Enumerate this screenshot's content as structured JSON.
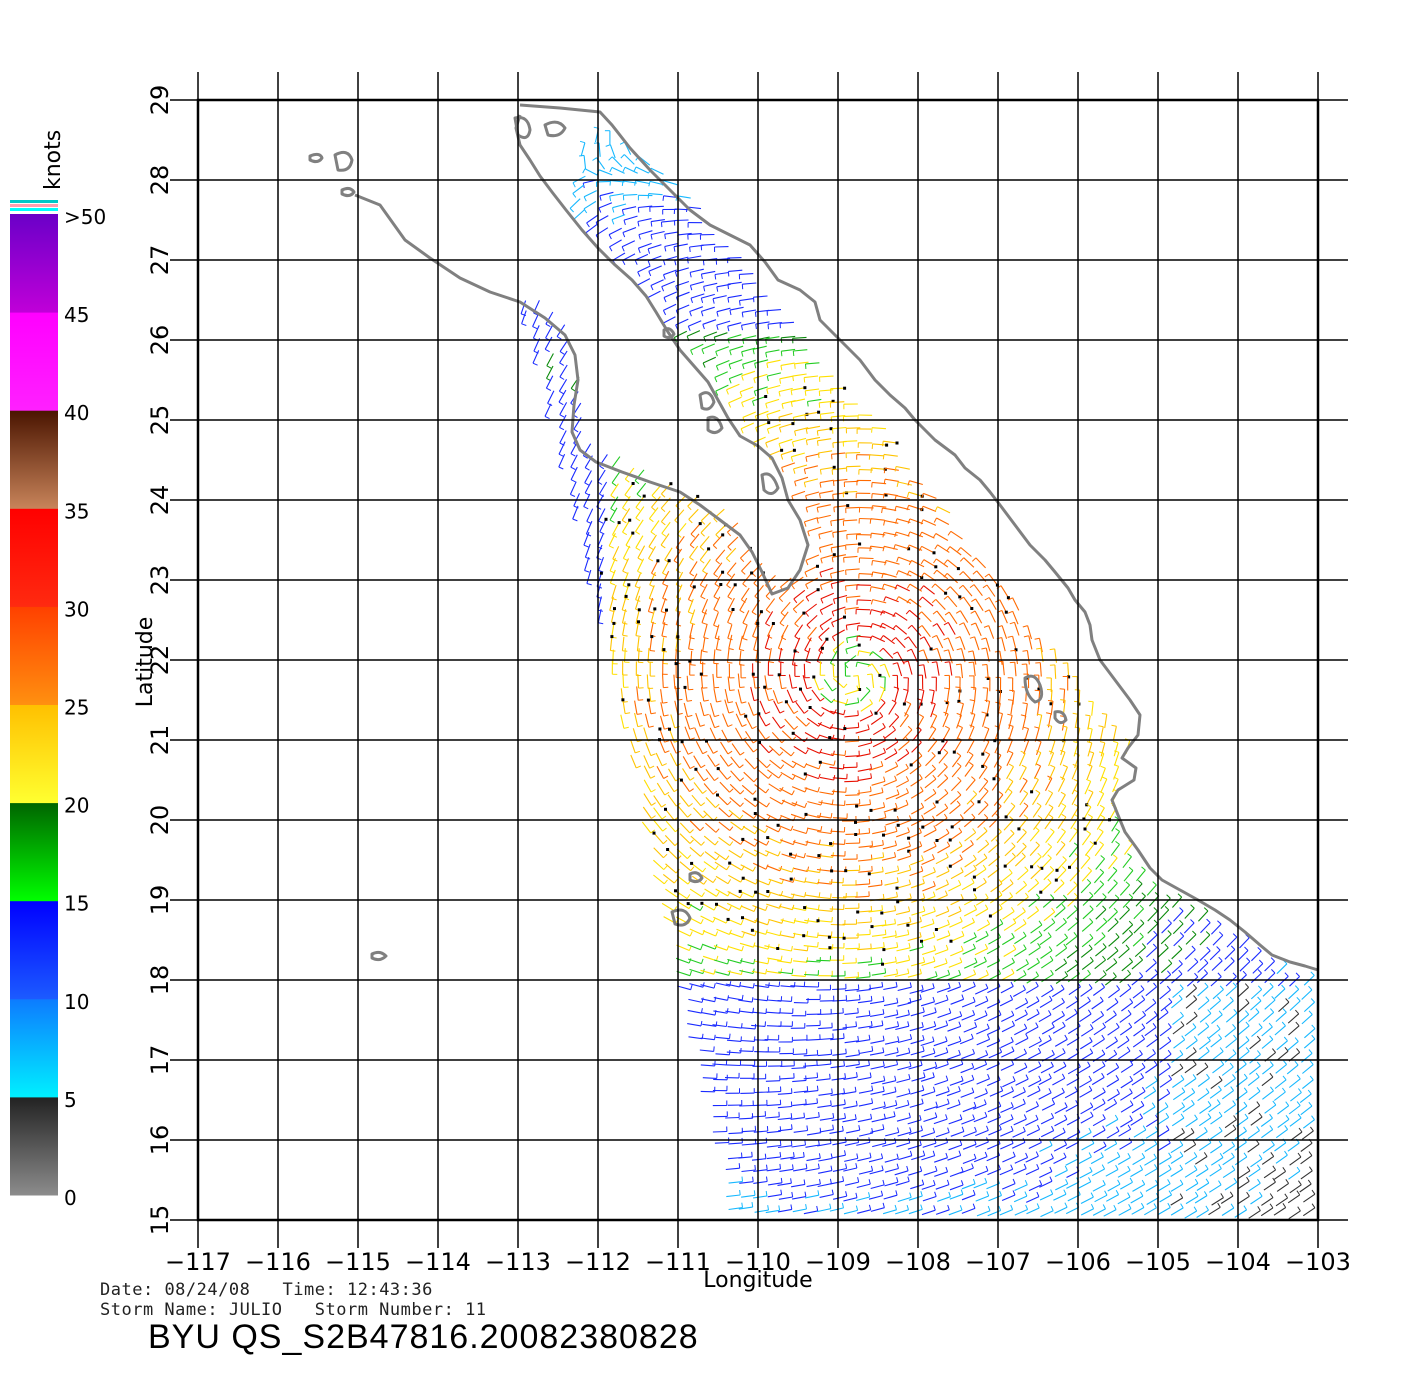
{
  "colorbar": {
    "unit_label": "knots",
    "labels": [
      ">50",
      "45",
      "40",
      "35",
      "30",
      "25",
      "20",
      "15",
      "10",
      "5",
      "0"
    ],
    "bands": [
      {
        "from": 0,
        "to": 5,
        "top_color": "#222222",
        "bottom_color": "#8c8c8c"
      },
      {
        "from": 5,
        "to": 10,
        "top_color": "#0d7bff",
        "bottom_color": "#00f0ff"
      },
      {
        "from": 10,
        "to": 15,
        "top_color": "#0000ff",
        "bottom_color": "#1c5bff"
      },
      {
        "from": 15,
        "to": 20,
        "top_color": "#006400",
        "bottom_color": "#00ff00"
      },
      {
        "from": 20,
        "to": 25,
        "top_color": "#ffc000",
        "bottom_color": "#ffff30"
      },
      {
        "from": 25,
        "to": 30,
        "top_color": "#ff4000",
        "bottom_color": "#ff9010"
      },
      {
        "from": 30,
        "to": 35,
        "top_color": "#ff0000",
        "bottom_color": "#ff2a10"
      },
      {
        "from": 35,
        "to": 40,
        "top_color": "#4a1400",
        "bottom_color": "#c8845a"
      },
      {
        "from": 40,
        "to": 45,
        "top_color": "#ff00ff",
        "bottom_color": "#ff20ff"
      },
      {
        "from": 45,
        "to": 50,
        "top_color": "#6a00c8",
        "bottom_color": "#c000d8"
      }
    ],
    "top_stripes": [
      "#00c8c8",
      "#ff9fb0",
      "#00ffff"
    ]
  },
  "map": {
    "lon_range": [
      -117,
      -103
    ],
    "lat_range": [
      15,
      29
    ],
    "x_label": "Longitude",
    "y_label": "Latitude",
    "x_ticks": [
      "−117",
      "−116",
      "−115",
      "−114",
      "−113",
      "−112",
      "−111",
      "−110",
      "−109",
      "−108",
      "−107",
      "−106",
      "−105",
      "−104",
      "−103"
    ],
    "y_ticks": [
      "15",
      "16",
      "17",
      "18",
      "19",
      "20",
      "21",
      "22",
      "23",
      "24",
      "25",
      "26",
      "27",
      "28",
      "29"
    ],
    "coast_color": "#808080",
    "storm_center_lonlat": [
      -108.8,
      21.8
    ]
  },
  "footer": {
    "date_label": "Date:",
    "date": "08/24/08",
    "time_label": "Time:",
    "time": "12:43:36",
    "storm_name_label": "Storm Name:",
    "storm_name": "JULIO",
    "storm_number_label": "Storm Number:",
    "storm_number": "11",
    "product": "BYU QS_S2B47816.20082380828"
  }
}
